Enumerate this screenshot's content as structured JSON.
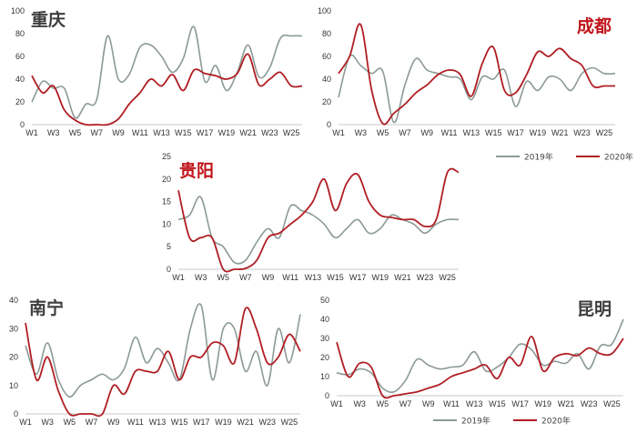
{
  "colors": {
    "s2019": "#8c9a96",
    "s2020": "#b01e23",
    "title_dark": "#3d3d3d",
    "title_red": "#c0161c"
  },
  "chart_data": [
    {
      "id": "chongqing",
      "type": "line",
      "title": "重庆",
      "title_color": "dark",
      "x": [
        "W1",
        "W2",
        "W3",
        "W4",
        "W5",
        "W6",
        "W7",
        "W8",
        "W9",
        "W10",
        "W11",
        "W12",
        "W13",
        "W14",
        "W15",
        "W16",
        "W17",
        "W18",
        "W19",
        "W20",
        "W21",
        "W22",
        "W23",
        "W24",
        "W25",
        "W26"
      ],
      "xticks": [
        "W1",
        "W3",
        "W5",
        "W7",
        "W9",
        "W11",
        "W13",
        "W15",
        "W17",
        "W19",
        "W21",
        "W23",
        "W25"
      ],
      "ylim": [
        0,
        100
      ],
      "yticks": [
        0,
        20,
        40,
        60,
        80,
        100
      ],
      "series": [
        {
          "name": "2019年",
          "values": [
            20,
            38,
            32,
            32,
            6,
            18,
            22,
            78,
            40,
            44,
            68,
            70,
            60,
            46,
            58,
            86,
            38,
            52,
            30,
            46,
            70,
            42,
            50,
            76,
            78,
            78
          ]
        },
        {
          "name": "2020年",
          "values": [
            43,
            28,
            34,
            13,
            4,
            0,
            0,
            0,
            5,
            18,
            28,
            40,
            34,
            44,
            30,
            48,
            45,
            43,
            40,
            45,
            62,
            35,
            40,
            46,
            34,
            34
          ]
        }
      ]
    },
    {
      "id": "chengdu",
      "type": "line",
      "title": "成都",
      "title_color": "red",
      "x": [
        "W1",
        "W2",
        "W3",
        "W4",
        "W5",
        "W6",
        "W7",
        "W8",
        "W9",
        "W10",
        "W11",
        "W12",
        "W13",
        "W14",
        "W15",
        "W16",
        "W17",
        "W18",
        "W19",
        "W20",
        "W21",
        "W22",
        "W23",
        "W24",
        "W25",
        "W26"
      ],
      "xticks": [
        "W1",
        "W3",
        "W5",
        "W7",
        "W9",
        "W11",
        "W13",
        "W15",
        "W17",
        "W19",
        "W21",
        "W23",
        "W25"
      ],
      "ylim": [
        0,
        100
      ],
      "yticks": [
        0,
        20,
        40,
        60,
        80,
        100
      ],
      "series": [
        {
          "name": "2019年",
          "values": [
            24,
            60,
            52,
            45,
            47,
            2,
            35,
            58,
            48,
            45,
            42,
            40,
            22,
            42,
            40,
            48,
            16,
            38,
            30,
            42,
            40,
            30,
            45,
            50,
            45,
            45
          ]
        },
        {
          "name": "2020年",
          "values": [
            45,
            60,
            88,
            30,
            1,
            10,
            18,
            28,
            35,
            44,
            48,
            44,
            25,
            54,
            68,
            30,
            28,
            44,
            64,
            60,
            67,
            58,
            52,
            34,
            34,
            34
          ]
        }
      ]
    },
    {
      "id": "guiyang",
      "type": "line",
      "title": "贵阳",
      "title_color": "red",
      "x": [
        "W1",
        "W2",
        "W3",
        "W4",
        "W5",
        "W6",
        "W7",
        "W8",
        "W9",
        "W10",
        "W11",
        "W12",
        "W13",
        "W14",
        "W15",
        "W16",
        "W17",
        "W18",
        "W19",
        "W20",
        "W21",
        "W22",
        "W23",
        "W24",
        "W25",
        "W26"
      ],
      "xticks": [
        "W1",
        "W3",
        "W5",
        "W7",
        "W9",
        "W11",
        "W13",
        "W15",
        "W17",
        "W19",
        "W21",
        "W23",
        "W25"
      ],
      "ylim": [
        0,
        25
      ],
      "yticks": [
        0,
        5,
        10,
        15,
        20,
        25
      ],
      "series": [
        {
          "name": "2019年",
          "values": [
            11,
            12,
            16,
            7,
            5,
            1.5,
            2,
            6,
            9,
            7,
            14,
            13,
            12,
            10,
            7,
            9,
            11,
            8,
            9,
            12,
            11,
            10,
            8,
            10,
            11,
            11
          ]
        },
        {
          "name": "2020年",
          "values": [
            17.5,
            7,
            7,
            7,
            0,
            0,
            0.2,
            2,
            7,
            8,
            10,
            12,
            15,
            20,
            13,
            19,
            21,
            15,
            12,
            11.5,
            11,
            11,
            9.5,
            11,
            21.5,
            21.5
          ]
        }
      ]
    },
    {
      "id": "nanning",
      "type": "line",
      "title": "南宁",
      "title_color": "dark",
      "x": [
        "W1",
        "W2",
        "W3",
        "W4",
        "W5",
        "W6",
        "W7",
        "W8",
        "W9",
        "W10",
        "W11",
        "W12",
        "W13",
        "W14",
        "W15",
        "W16",
        "W17",
        "W18",
        "W19",
        "W20",
        "W21",
        "W22",
        "W23",
        "W24",
        "W25",
        "W26"
      ],
      "xticks": [
        "W1",
        "W3",
        "W5",
        "W7",
        "W9",
        "W11",
        "W13",
        "W15",
        "W17",
        "W19",
        "W21",
        "W23",
        "W25"
      ],
      "ylim": [
        0,
        40
      ],
      "yticks": [
        0,
        10,
        20,
        30,
        40
      ],
      "series": [
        {
          "name": "2019年",
          "values": [
            24,
            14,
            25,
            12,
            6,
            10,
            12,
            14,
            12,
            16,
            27,
            18,
            23,
            18,
            12,
            30,
            38,
            12,
            30,
            30,
            15,
            22,
            10,
            30,
            18,
            35
          ]
        },
        {
          "name": "2020年",
          "values": [
            32,
            12,
            20,
            8,
            0,
            0,
            0,
            0,
            10,
            7,
            15,
            15,
            15,
            22,
            12,
            20,
            20,
            25,
            24,
            18,
            37,
            30,
            18,
            20,
            28,
            22
          ]
        }
      ]
    },
    {
      "id": "kunming",
      "type": "line",
      "title": "昆明",
      "title_color": "dark",
      "x": [
        "W1",
        "W2",
        "W3",
        "W4",
        "W5",
        "W6",
        "W7",
        "W8",
        "W9",
        "W10",
        "W11",
        "W12",
        "W13",
        "W14",
        "W15",
        "W16",
        "W17",
        "W18",
        "W19",
        "W20",
        "W21",
        "W22",
        "W23",
        "W24",
        "W25",
        "W26"
      ],
      "xticks": [
        "W1",
        "W3",
        "W5",
        "W7",
        "W9",
        "W11",
        "W13",
        "W15",
        "W17",
        "W19",
        "W21",
        "W23",
        "W25"
      ],
      "ylim": [
        0,
        50
      ],
      "yticks": [
        0,
        10,
        20,
        30,
        40,
        50
      ],
      "series": [
        {
          "name": "2019年",
          "values": [
            12,
            11,
            14,
            12,
            4,
            2,
            8,
            19,
            16,
            14,
            15,
            16,
            23,
            13,
            15,
            20,
            27,
            24,
            16,
            18,
            17,
            22,
            14,
            26,
            27,
            40
          ]
        },
        {
          "name": "2020年",
          "values": [
            28,
            10,
            17,
            15,
            0,
            0,
            1,
            2,
            4,
            6,
            10,
            12,
            14,
            16,
            9,
            20,
            16,
            31,
            13,
            20,
            22,
            21,
            25,
            22,
            22,
            30
          ]
        }
      ]
    }
  ],
  "legends": [
    {
      "id": "legend-mid",
      "items": [
        "2019年",
        "2020年"
      ]
    },
    {
      "id": "legend-bottom",
      "items": [
        "2019年",
        "2020年"
      ]
    }
  ]
}
